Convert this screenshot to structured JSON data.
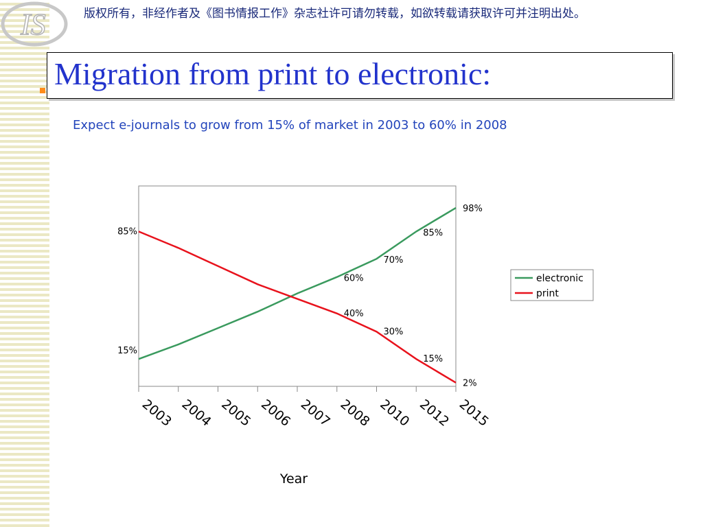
{
  "header": {
    "copyright": "版权所有，非经作者及《图书情报工作》杂志社许可请勿转载，如欲转载请获取许可并注明出处。"
  },
  "slide": {
    "title": "Migration from print to electronic:",
    "subtitle": "Expect e-journals to grow from 15% of market in 2003 to 60% in 2008"
  },
  "colors": {
    "electronic": "#3a9a5e",
    "print": "#e8121c"
  },
  "chart_data": {
    "type": "line",
    "categories": [
      "2003",
      "2004",
      "2005",
      "2006",
      "2007",
      "2008",
      "2010",
      "2012",
      "2015"
    ],
    "xlabel": "Year",
    "ylabel": "",
    "ylim": [
      0,
      110
    ],
    "grid": false,
    "legend": "right",
    "series": [
      {
        "name": "electronic",
        "values": [
          15,
          23,
          32,
          41,
          51,
          60,
          70,
          85,
          98
        ],
        "labels": [
          "15%",
          "",
          "",
          "",
          "",
          "60%",
          "70%",
          "85%",
          "98%"
        ]
      },
      {
        "name": "print",
        "values": [
          85,
          76,
          66,
          56,
          48,
          40,
          30,
          15,
          2
        ],
        "labels": [
          "85%",
          "",
          "",
          "",
          "",
          "40%",
          "30%",
          "15%",
          "2%"
        ]
      }
    ]
  }
}
